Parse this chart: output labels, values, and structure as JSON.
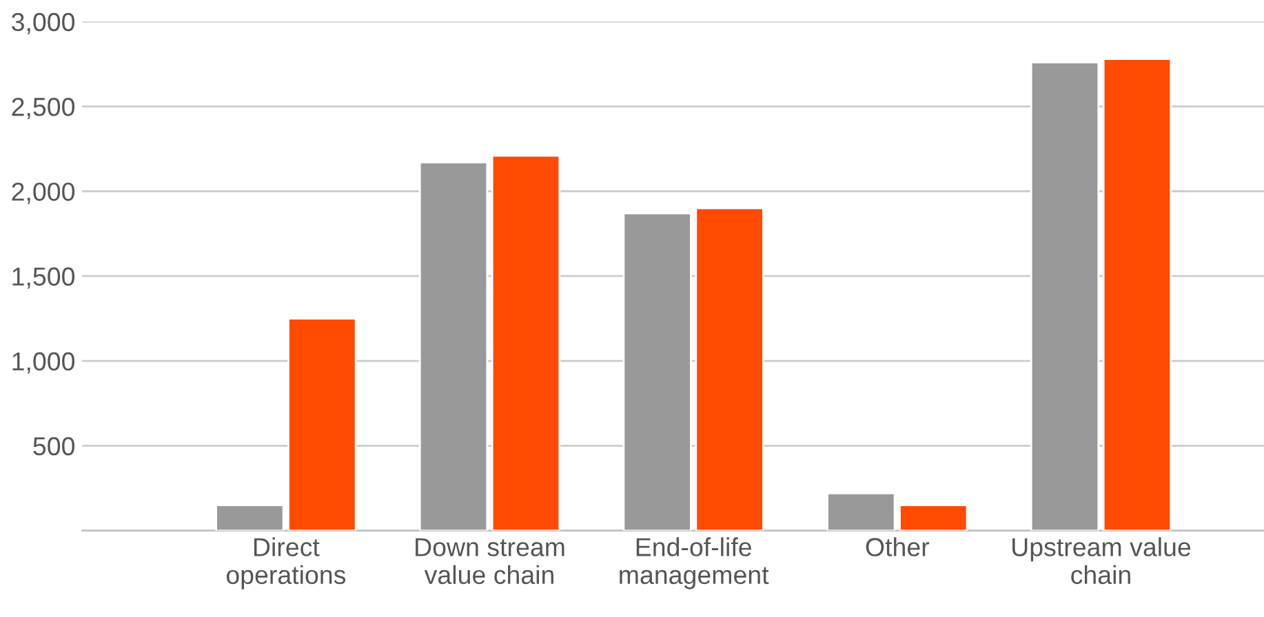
{
  "chart_data": {
    "type": "bar",
    "categories": [
      "Direct\noperations",
      "Down stream\nvalue chain",
      "End-of-life\nmanagement",
      "Other",
      "Upstream value\nchain"
    ],
    "series": [
      {
        "color": "#999999",
        "values": [
          150,
          2170,
          1870,
          220,
          2760
        ]
      },
      {
        "color": "#ff4a00",
        "values": [
          1250,
          2210,
          1900,
          150,
          2780
        ]
      }
    ],
    "ylim": [
      0,
      3000
    ],
    "yticks": [
      {
        "value": 0,
        "label": null
      },
      {
        "value": 500,
        "label": "500"
      },
      {
        "value": 1000,
        "label": "1,000"
      },
      {
        "value": 1500,
        "label": "1,500"
      },
      {
        "value": 2000,
        "label": "2,000"
      },
      {
        "value": 2500,
        "label": "2,500"
      },
      {
        "value": 3000,
        "label": "3,000"
      }
    ],
    "grid": "y"
  }
}
